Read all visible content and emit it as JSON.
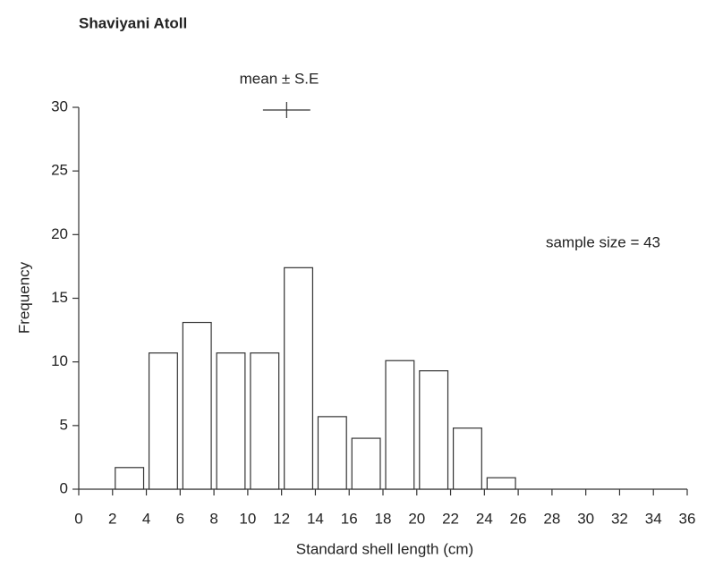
{
  "chart_data": {
    "type": "histogram",
    "title": "Shaviyani Atoll",
    "x_label": "Standard shell length (cm)",
    "y_label": "Frequency",
    "bins": [
      2,
      4,
      6,
      8,
      10,
      12,
      14,
      16,
      18,
      20,
      22,
      24,
      26
    ],
    "values": [
      1.7,
      10.7,
      13.1,
      10.7,
      10.7,
      17.4,
      5.7,
      4.0,
      10.1,
      9.3,
      4.8,
      0.9
    ],
    "color": "#ffffff",
    "xlim": [
      0,
      36
    ],
    "xticks": [
      0,
      2,
      4,
      6,
      8,
      10,
      12,
      14,
      16,
      18,
      20,
      22,
      24,
      26,
      28,
      30,
      32,
      34,
      36
    ],
    "ylim": [
      0,
      30
    ],
    "yticks": [
      0,
      5,
      10,
      15,
      20,
      25,
      30
    ],
    "mean_se": {
      "label": "mean ± S.E",
      "mean": 12.3,
      "se": 1.4
    },
    "annotation": "sample size = 43"
  }
}
